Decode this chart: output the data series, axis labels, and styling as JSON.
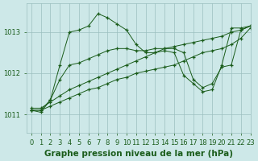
{
  "background_color": "#cde8e8",
  "grid_color": "#9bbfbf",
  "line_color": "#1a5c1a",
  "title": "Graphe pression niveau de la mer (hPa)",
  "ylim": [
    1010.55,
    1013.7
  ],
  "xlim": [
    -0.5,
    23
  ],
  "yticks": [
    1011,
    1012,
    1013
  ],
  "xticks": [
    0,
    1,
    2,
    3,
    4,
    5,
    6,
    7,
    8,
    9,
    10,
    11,
    12,
    13,
    14,
    15,
    16,
    17,
    18,
    19,
    20,
    21,
    22,
    23
  ],
  "lines": [
    {
      "x": [
        0,
        1,
        2,
        3,
        4,
        5,
        6,
        7,
        8,
        9,
        10,
        11,
        12,
        13,
        14,
        15,
        16,
        17,
        18,
        19,
        20,
        21,
        22,
        23
      ],
      "y": [
        1011.1,
        1011.1,
        1011.2,
        1011.3,
        1011.4,
        1011.5,
        1011.6,
        1011.65,
        1011.75,
        1011.85,
        1011.9,
        1012.0,
        1012.05,
        1012.1,
        1012.15,
        1012.2,
        1012.3,
        1012.4,
        1012.5,
        1012.55,
        1012.6,
        1012.7,
        1012.85,
        1013.1
      ]
    },
    {
      "x": [
        0,
        1,
        2,
        3,
        4,
        5,
        6,
        7,
        8,
        9,
        10,
        11,
        12,
        13,
        14,
        15,
        16,
        17,
        18,
        19,
        20,
        21,
        22,
        23
      ],
      "y": [
        1011.15,
        1011.15,
        1011.3,
        1011.45,
        1011.6,
        1011.7,
        1011.8,
        1011.9,
        1012.0,
        1012.1,
        1012.2,
        1012.3,
        1012.4,
        1012.5,
        1012.6,
        1012.65,
        1012.7,
        1012.75,
        1012.8,
        1012.85,
        1012.9,
        1013.0,
        1013.05,
        1013.15
      ]
    },
    {
      "x": [
        0,
        1,
        2,
        3,
        4,
        5,
        6,
        7,
        8,
        9,
        10,
        11,
        12,
        13,
        14,
        15,
        16,
        17,
        18,
        19,
        20,
        21,
        22,
        23
      ],
      "y": [
        1011.1,
        1011.1,
        1011.35,
        1011.85,
        1012.2,
        1012.25,
        1012.35,
        1012.45,
        1012.55,
        1012.6,
        1012.6,
        1012.55,
        1012.55,
        1012.6,
        1012.6,
        1012.6,
        1012.5,
        1011.85,
        1011.65,
        1011.75,
        1012.15,
        1012.2,
        1013.05,
        1013.15
      ]
    },
    {
      "x": [
        0,
        1,
        2,
        3,
        4,
        5,
        6,
        7,
        8,
        9,
        10,
        11,
        12,
        13,
        14,
        15,
        16,
        17,
        18,
        19,
        20,
        21,
        22,
        23
      ],
      "y": [
        1011.1,
        1011.05,
        1011.35,
        1012.2,
        1013.0,
        1013.05,
        1013.15,
        1013.45,
        1013.35,
        1013.2,
        1013.05,
        1012.7,
        1012.5,
        1012.5,
        1012.55,
        1012.5,
        1011.95,
        1011.75,
        1011.55,
        1011.6,
        1012.2,
        1013.1,
        1013.1,
        1013.15
      ]
    }
  ],
  "title_fontsize": 7.5,
  "tick_fontsize": 6,
  "title_color": "#1a5c1a"
}
